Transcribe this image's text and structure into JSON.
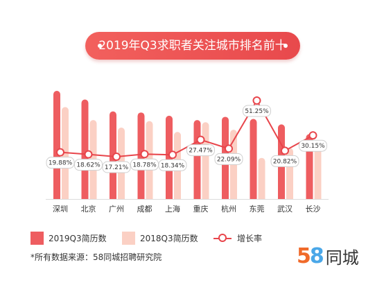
{
  "title": "2019年Q3求职者关注城市排名前十",
  "colors": {
    "bar2019": "#ee5d60",
    "bar2018": "#fbd0c4",
    "line": "#e8454b",
    "title_bg": "#ee5457"
  },
  "chart_data": {
    "type": "bar",
    "categories": [
      "深圳",
      "北京",
      "广州",
      "成都",
      "上海",
      "重庆",
      "杭州",
      "东莞",
      "武汉",
      "长沙"
    ],
    "series": [
      {
        "name": "2019Q3简历数",
        "type": "bar",
        "values": [
          100,
          92,
          81,
          80,
          77,
          73,
          76,
          74,
          69,
          60
        ]
      },
      {
        "name": "2018Q3简历数",
        "type": "bar",
        "values": [
          85,
          73,
          66,
          72,
          62,
          71,
          64,
          38,
          47,
          53
        ]
      },
      {
        "name": "增长率",
        "type": "line",
        "values": [
          19.88,
          18.62,
          17.21,
          18.78,
          18.34,
          27.47,
          22.09,
          51.25,
          20.82,
          30.15
        ],
        "labels": [
          "19.88%",
          "18.62%",
          "17.21%",
          "18.78%",
          "18.34%",
          "27.47%",
          "22.09%",
          "51.25%",
          "20.82%",
          "30.15%"
        ]
      }
    ],
    "legend": "bottom",
    "grid": false
  },
  "legend": {
    "item1": "2019Q3简历数",
    "item2": "2018Q3简历数",
    "item3": "增长率"
  },
  "source": "*所有数据来源：58同城招聘研究院",
  "logo": {
    "num5": "5",
    "num8": "8",
    "text": "同城"
  }
}
